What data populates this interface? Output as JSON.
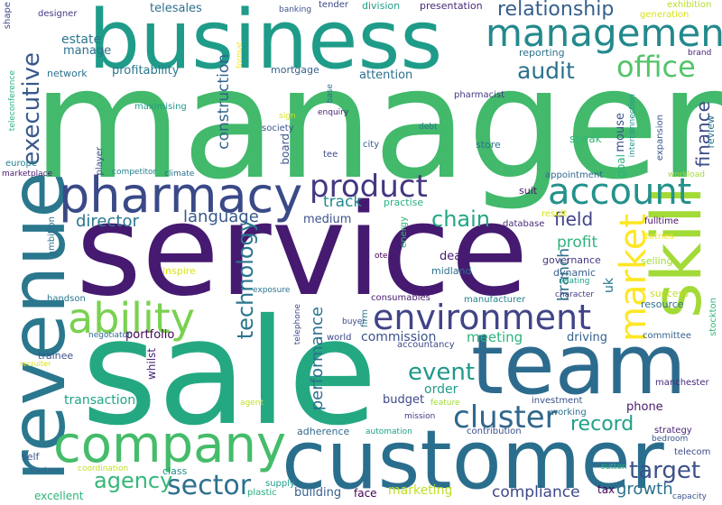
{
  "words": [
    {
      "text": "manager",
      "color": "#42b96b"
    },
    {
      "text": "service",
      "color": "#461a70"
    },
    {
      "text": "sale",
      "color": "#24a882"
    },
    {
      "text": "business",
      "color": "#1f9c89"
    },
    {
      "text": "customer",
      "color": "#2a6e8e"
    },
    {
      "text": "team",
      "color": "#2d6b8e"
    },
    {
      "text": "revenue",
      "color": "#2a778e"
    },
    {
      "text": "skill",
      "color": "#a2da37"
    },
    {
      "text": "company",
      "color": "#45bc6a"
    },
    {
      "text": "pharmacy",
      "color": "#3a4a88"
    },
    {
      "text": "account",
      "color": "#24918c"
    },
    {
      "text": "management",
      "color": "#23898d"
    },
    {
      "text": "environment",
      "color": "#414487"
    },
    {
      "text": "ability",
      "color": "#7ad151"
    },
    {
      "text": "cluster",
      "color": "#30678d"
    },
    {
      "text": "product",
      "color": "#453781"
    },
    {
      "text": "market",
      "color": "#fde725"
    },
    {
      "text": "sector",
      "color": "#2c718e"
    },
    {
      "text": "office",
      "color": "#52c569"
    },
    {
      "text": "executive",
      "color": "#38588c"
    },
    {
      "text": "target",
      "color": "#3b518b"
    },
    {
      "text": "technology",
      "color": "#2a768e"
    },
    {
      "text": "agency",
      "color": "#35b779"
    },
    {
      "text": "event",
      "color": "#1f988b"
    },
    {
      "text": "audit",
      "color": "#2c718e"
    },
    {
      "text": "relationship",
      "color": "#355f8d"
    },
    {
      "text": "chain",
      "color": "#22a785"
    },
    {
      "text": "record",
      "color": "#1fa187"
    },
    {
      "text": "finance",
      "color": "#3e4c8a"
    },
    {
      "text": "performance",
      "color": "#2d708e"
    },
    {
      "text": "field",
      "color": "#404387"
    },
    {
      "text": "growth",
      "color": "#2c728e"
    },
    {
      "text": "compliance",
      "color": "#3e4989"
    },
    {
      "text": "director",
      "color": "#2a788e"
    },
    {
      "text": "language",
      "color": "#38588c"
    },
    {
      "text": "construction",
      "color": "#33638d"
    },
    {
      "text": "track",
      "color": "#23898e"
    },
    {
      "text": "branch",
      "color": "#2d718e"
    },
    {
      "text": "profit",
      "color": "#2fb47c"
    },
    {
      "text": "commission",
      "color": "#3b528b"
    },
    {
      "text": "meeting",
      "color": "#2db27d"
    },
    {
      "text": "transaction",
      "color": "#20a386"
    },
    {
      "text": "order",
      "color": "#1e9b8a"
    },
    {
      "text": "marketing",
      "color": "#bddf26"
    },
    {
      "text": "building",
      "color": "#355f8d"
    },
    {
      "text": "uk",
      "color": "#2a788e"
    },
    {
      "text": "portfolio",
      "color": "#440154"
    },
    {
      "text": "phone",
      "color": "#481a6c"
    },
    {
      "text": "driving",
      "color": "#35608d"
    },
    {
      "text": "medium",
      "color": "#3b528b"
    },
    {
      "text": "deal",
      "color": "#482173"
    },
    {
      "text": "budget",
      "color": "#3e4989"
    },
    {
      "text": "estate",
      "color": "#2a788e"
    },
    {
      "text": "manage",
      "color": "#2c718e"
    },
    {
      "text": "profitability",
      "color": "#2a788e"
    },
    {
      "text": "attention",
      "color": "#2d708e"
    },
    {
      "text": "telesales",
      "color": "#2d708e"
    },
    {
      "text": "mortgage",
      "color": "#33638d"
    },
    {
      "text": "network",
      "color": "#2c718e"
    },
    {
      "text": "division",
      "color": "#1f9e89"
    },
    {
      "text": "presentation",
      "color": "#482878"
    },
    {
      "text": "designer",
      "color": "#443a83"
    },
    {
      "text": "banking",
      "color": "#3b528b"
    },
    {
      "text": "tender",
      "color": "#3e4989"
    },
    {
      "text": "exhibition",
      "color": "#b5de2b"
    },
    {
      "text": "generation",
      "color": "#d8e219"
    },
    {
      "text": "brand",
      "color": "#482475"
    },
    {
      "text": "reporting",
      "color": "#2c728e"
    },
    {
      "text": "pharmacist",
      "color": "#443983"
    },
    {
      "text": "format",
      "color": "#fde725"
    },
    {
      "text": "shape",
      "color": "#3e4a89"
    },
    {
      "text": "mouse",
      "color": "#3b528b"
    },
    {
      "text": "goal",
      "color": "#2db27d"
    },
    {
      "text": "expansion",
      "color": "#39568c"
    },
    {
      "text": "interconnection",
      "color": "#20928c"
    },
    {
      "text": "review",
      "color": "#2a768e"
    },
    {
      "text": "speak",
      "color": "#35b779"
    },
    {
      "text": "store",
      "color": "#2c728e"
    },
    {
      "text": "appointment",
      "color": "#31688e"
    },
    {
      "text": "workload",
      "color": "#a5db36"
    },
    {
      "text": "suit",
      "color": "#471365"
    },
    {
      "text": "database",
      "color": "#472d7b"
    },
    {
      "text": "result",
      "color": "#d8e219"
    },
    {
      "text": "fulltime",
      "color": "#471063"
    },
    {
      "text": "totnes",
      "color": "#fde725"
    },
    {
      "text": "selling",
      "color": "#a2da37"
    },
    {
      "text": "governance",
      "color": "#453781"
    },
    {
      "text": "dynamic",
      "color": "#35608d"
    },
    {
      "text": "relating",
      "color": "#1fa188"
    },
    {
      "text": "character",
      "color": "#443983"
    },
    {
      "text": "success",
      "color": "#c2df23"
    },
    {
      "text": "resource",
      "color": "#2d718e"
    },
    {
      "text": "committee",
      "color": "#35608d"
    },
    {
      "text": "stockton",
      "color": "#34b679"
    },
    {
      "text": "manchester",
      "color": "#472a7a"
    },
    {
      "text": "investment",
      "color": "#3b528b"
    },
    {
      "text": "working",
      "color": "#2c728e"
    },
    {
      "text": "strategy",
      "color": "#482576"
    },
    {
      "text": "bedroom",
      "color": "#39568c"
    },
    {
      "text": "telecom",
      "color": "#3e4a89"
    },
    {
      "text": "sutton",
      "color": "#2db27d"
    },
    {
      "text": "capacity",
      "color": "#3b528b"
    },
    {
      "text": "tax",
      "color": "#440154"
    },
    {
      "text": "contribution",
      "color": "#3b528b"
    },
    {
      "text": "mission",
      "color": "#453781"
    },
    {
      "text": "feature",
      "color": "#a0da39"
    },
    {
      "text": "accountancy",
      "color": "#3e4a89"
    },
    {
      "text": "automation",
      "color": "#1fa187"
    },
    {
      "text": "adherence",
      "color": "#31688e"
    },
    {
      "text": "face",
      "color": "#440154"
    },
    {
      "text": "plastic",
      "color": "#26ad81"
    },
    {
      "text": "supply",
      "color": "#1f9e89"
    },
    {
      "text": "class",
      "color": "#21918c"
    },
    {
      "text": "coordination",
      "color": "#c2df23"
    },
    {
      "text": "partner",
      "color": "#35608d"
    },
    {
      "text": "excellent",
      "color": "#2fb47c"
    },
    {
      "text": "self",
      "color": "#3b528b"
    },
    {
      "text": "agent",
      "color": "#c2df23"
    },
    {
      "text": "whilst",
      "color": "#482878"
    },
    {
      "text": "trainee",
      "color": "#3b528b"
    },
    {
      "text": "recruiter",
      "color": "#d8e219"
    },
    {
      "text": "negotiator",
      "color": "#31688e"
    },
    {
      "text": "handson",
      "color": "#2a788e"
    },
    {
      "text": "ambition",
      "color": "#2c728e"
    },
    {
      "text": "inspire",
      "color": "#d8e219"
    },
    {
      "text": "exposure",
      "color": "#2c728e"
    },
    {
      "text": "telephone",
      "color": "#3e4989"
    },
    {
      "text": "buyer",
      "color": "#3e4989"
    },
    {
      "text": "world",
      "color": "#3e4989"
    },
    {
      "text": "firm",
      "color": "#2a788e"
    },
    {
      "text": "consumables",
      "color": "#481c6e"
    },
    {
      "text": "manufacturer",
      "color": "#26828e"
    },
    {
      "text": "midland",
      "color": "#2c718e"
    },
    {
      "text": "ote",
      "color": "#440154"
    },
    {
      "text": "energy",
      "color": "#31b57b"
    },
    {
      "text": "practise",
      "color": "#2ab07f"
    },
    {
      "text": "tee",
      "color": "#3e4a89"
    },
    {
      "text": "climate",
      "color": "#2c718e"
    },
    {
      "text": "competitor",
      "color": "#26828e"
    },
    {
      "text": "player",
      "color": "#3e4a89"
    },
    {
      "text": "board",
      "color": "#3b528b"
    },
    {
      "text": "society",
      "color": "#3b528b"
    },
    {
      "text": "city",
      "color": "#355f8d"
    },
    {
      "text": "debt",
      "color": "#2c728e"
    },
    {
      "text": "base",
      "color": "#2c728e"
    },
    {
      "text": "enquiry",
      "color": "#482576"
    },
    {
      "text": "sign",
      "color": "#d8e219"
    },
    {
      "text": "maximising",
      "color": "#1f9e89"
    },
    {
      "text": "marketplace",
      "color": "#481b6d"
    },
    {
      "text": "europe",
      "color": "#26828e"
    },
    {
      "text": "teleconference",
      "color": "#2db27d"
    }
  ]
}
